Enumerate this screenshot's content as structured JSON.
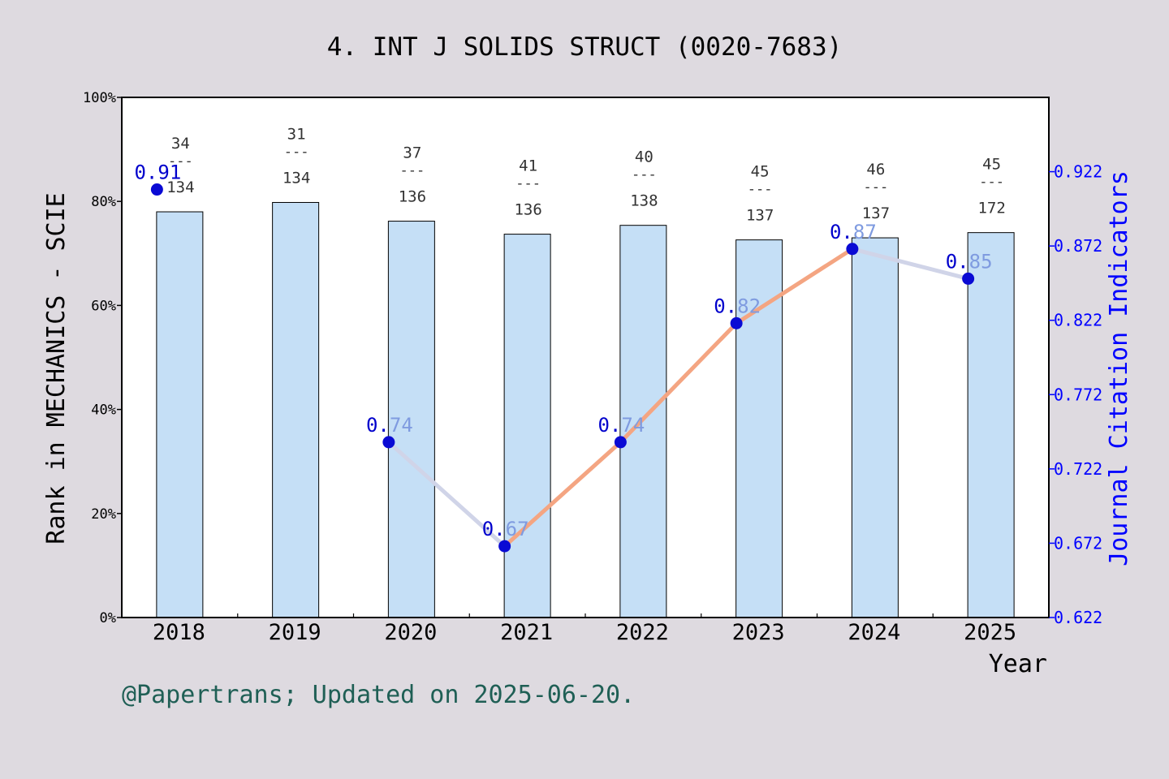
{
  "colors": {
    "background": "#dedae0",
    "plot_bg": "#ffffff",
    "bar_fill": "#c5dff6",
    "bar_stroke": "#000000",
    "line_up": "#f4a582",
    "line_down": "#d0d4e8",
    "marker": "#0a0ad4",
    "jci_text": "#0000cc",
    "jci_text_light": "#7f9be0",
    "right_axis": "#0000ff",
    "footer": "#1f5f55",
    "rank_text": "#333333"
  },
  "footer": "@Papertrans; Updated on 2025-06-20.",
  "chart_data": {
    "type": "bar",
    "title": "4. INT J SOLIDS STRUCT (0020-7683)",
    "xlabel": "Year",
    "ylabel": "Rank in MECHANICS - SCIE",
    "y2label": "Journal Citation Indicators",
    "categories": [
      "2018",
      "2019",
      "2020",
      "2021",
      "2022",
      "2023",
      "2024",
      "2025"
    ],
    "ylim": [
      0,
      100
    ],
    "y_ticks": [
      "0%",
      "20%",
      "40%",
      "60%",
      "80%",
      "100%"
    ],
    "y2lim": [
      0.622,
      0.972
    ],
    "y2_ticks": [
      "0.622",
      "0.672",
      "0.722",
      "0.772",
      "0.822",
      "0.872",
      "0.922"
    ],
    "series": [
      {
        "kind": "bar",
        "values": [
          78.0,
          79.8,
          76.2,
          73.7,
          75.4,
          72.6,
          73.0,
          74.0
        ],
        "rank": [
          "34",
          "31",
          "37",
          "41",
          "40",
          "45",
          "46",
          "45"
        ],
        "total": [
          "134",
          "134",
          "136",
          "136",
          "138",
          "137",
          "137",
          "172"
        ]
      },
      {
        "kind": "line",
        "axis": "right",
        "values": [
          0.91,
          null,
          0.74,
          0.67,
          0.74,
          0.82,
          0.87,
          0.85
        ],
        "labels": [
          "0.91",
          "",
          "0.74",
          "0.67",
          "0.74",
          "0.82",
          "0.87",
          "0.85"
        ]
      }
    ],
    "rank_separator": "---",
    "grid": false,
    "legend": "none"
  }
}
